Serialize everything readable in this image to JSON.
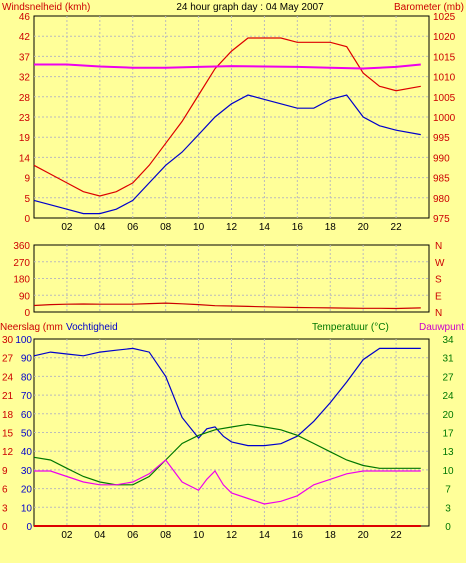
{
  "chart_data": [
    {
      "type": "line",
      "title": "24 hour graph day : 04 May 2007",
      "left_axis_label": "Windsnelheid (kmh)",
      "right_axis_label": "Barometer (mb)",
      "x_ticks": [
        "02",
        "04",
        "06",
        "08",
        "10",
        "12",
        "14",
        "16",
        "18",
        "20",
        "22"
      ],
      "xlim": [
        0,
        24
      ],
      "left_ticks": [
        0,
        5,
        9,
        14,
        19,
        23,
        28,
        32,
        37,
        42,
        46
      ],
      "left_lim": [
        0,
        46
      ],
      "right_ticks": [
        975,
        980,
        985,
        990,
        995,
        1000,
        1005,
        1010,
        1015,
        1020,
        1025
      ],
      "right_lim": [
        975,
        1025
      ],
      "series": [
        {
          "key": "gust",
          "axis": "left",
          "color": "#dd0000",
          "x": [
            0,
            1,
            2,
            3,
            4,
            5,
            6,
            7,
            8,
            9,
            10,
            11,
            12,
            13,
            14,
            15,
            16,
            17,
            18,
            19,
            20,
            21,
            22,
            23.5
          ],
          "values": [
            12,
            10,
            8,
            6,
            5,
            6,
            8,
            12,
            17,
            22,
            28,
            34,
            38,
            41,
            41,
            41,
            40,
            40,
            40,
            39,
            33,
            30,
            29,
            30
          ]
        },
        {
          "key": "wind",
          "axis": "left",
          "color": "#0000cc",
          "x": [
            0,
            1,
            2,
            3,
            4,
            5,
            6,
            7,
            8,
            9,
            10,
            11,
            12,
            13,
            14,
            15,
            16,
            17,
            18,
            19,
            20,
            21,
            22,
            23.5
          ],
          "values": [
            4,
            3,
            2,
            1,
            1,
            2,
            4,
            8,
            12,
            15,
            19,
            23,
            26,
            28,
            27,
            26,
            25,
            25,
            27,
            28,
            23,
            21,
            20,
            19
          ]
        },
        {
          "key": "baro",
          "axis": "right",
          "color": "#ee00ee",
          "x": [
            0,
            2,
            4,
            6,
            8,
            10,
            12,
            14,
            16,
            18,
            20,
            22,
            23.5
          ],
          "values": [
            1013,
            1013,
            1012.5,
            1012.2,
            1012.2,
            1012.4,
            1012.6,
            1012.5,
            1012.4,
            1012.2,
            1012,
            1012.4,
            1013
          ]
        }
      ]
    },
    {
      "type": "line",
      "right_axis_label": "N W S E N",
      "left_ticks": [
        0,
        90,
        180,
        270,
        360
      ],
      "left_lim": [
        0,
        360
      ],
      "xlim": [
        0,
        24
      ],
      "series": [
        {
          "key": "dir",
          "color": "#cc0000",
          "x": [
            0,
            1,
            2,
            3,
            4,
            5,
            6,
            7,
            8,
            9,
            10,
            11,
            12,
            13,
            14,
            15,
            16,
            17,
            18,
            19,
            20,
            21,
            22,
            23.5
          ],
          "values": [
            35,
            40,
            42,
            43,
            42,
            42,
            42,
            45,
            48,
            44,
            40,
            34,
            32,
            30,
            28,
            26,
            24,
            23,
            22,
            21,
            20,
            20,
            19,
            22
          ]
        }
      ]
    },
    {
      "type": "line",
      "left_axis_label": "Neerslag (mm",
      "left_axis_label_2": "Vochtigheid",
      "right_axis_label": "Temperatuur (°C)",
      "right_axis_label_2": "Dauwpunt",
      "x_ticks": [
        "02",
        "04",
        "06",
        "08",
        "10",
        "12",
        "14",
        "16",
        "18",
        "20",
        "22"
      ],
      "xlim": [
        0,
        24
      ],
      "rain_ticks": [
        0,
        3,
        6,
        9,
        12,
        15,
        18,
        21,
        24,
        27,
        30
      ],
      "hum_ticks": [
        0,
        10,
        20,
        30,
        40,
        50,
        60,
        70,
        80,
        90,
        100
      ],
      "hum_lim": [
        0,
        100
      ],
      "temp_ticks": [
        0,
        3,
        7,
        10,
        13,
        17,
        20,
        24,
        27,
        31,
        34
      ],
      "temp_lim": [
        0,
        34
      ],
      "series": [
        {
          "key": "hum",
          "axis": "hum",
          "color": "#0000cc",
          "x": [
            0,
            1,
            2,
            3,
            4,
            5,
            6,
            7,
            8,
            9,
            10,
            10.5,
            11,
            11.5,
            12,
            13,
            14,
            15,
            16,
            17,
            18,
            19,
            20,
            21,
            22,
            23.5
          ],
          "values": [
            91,
            93,
            92,
            91,
            93,
            94,
            95,
            93,
            80,
            58,
            47,
            52,
            53,
            48,
            45,
            43,
            43,
            44,
            48,
            56,
            66,
            77,
            89,
            95,
            95,
            95
          ]
        },
        {
          "key": "temp",
          "axis": "temp",
          "color": "#007700",
          "x": [
            0,
            1,
            2,
            3,
            4,
            5,
            6,
            7,
            8,
            9,
            10,
            11,
            12,
            13,
            14,
            15,
            16,
            17,
            18,
            19,
            20,
            21,
            22,
            23.5
          ],
          "values": [
            12.5,
            12,
            10.5,
            9,
            8,
            7.5,
            7.5,
            9,
            12,
            15,
            16.5,
            17.5,
            18,
            18.5,
            18,
            17.5,
            16.5,
            15,
            13.5,
            12,
            11,
            10.5,
            10.5,
            10.5
          ]
        },
        {
          "key": "dew",
          "axis": "temp",
          "color": "#ee00ee",
          "x": [
            0,
            1,
            2,
            3,
            4,
            5,
            6,
            7,
            8,
            9,
            10,
            10.5,
            11,
            11.5,
            12,
            13,
            14,
            15,
            16,
            17,
            18,
            19,
            20,
            21,
            22,
            23.5
          ],
          "values": [
            10,
            10,
            9,
            8,
            7.5,
            7.5,
            8,
            9.5,
            12,
            8,
            6.5,
            8.5,
            10,
            7.5,
            6,
            5,
            4,
            4.5,
            5.5,
            7.5,
            8.5,
            9.5,
            10,
            10,
            10,
            10
          ]
        },
        {
          "key": "rain",
          "axis": "rain",
          "color": "#dd0000",
          "x": [
            0,
            23.5
          ],
          "values": [
            0,
            0
          ]
        }
      ]
    }
  ]
}
